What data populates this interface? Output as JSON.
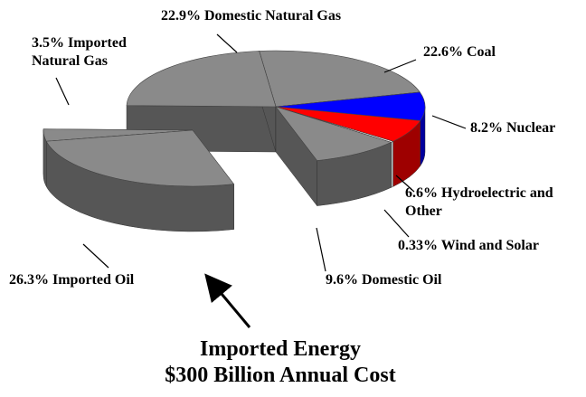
{
  "chart_data": {
    "type": "pie3d",
    "categories": [
      "Domestic Natural Gas",
      "Coal",
      "Nuclear",
      "Hydroelectric and Other",
      "Wind and Solar",
      "Domestic Oil",
      "Imported Oil",
      "Imported Natural Gas"
    ],
    "values": [
      22.9,
      22.6,
      8.2,
      6.6,
      0.33,
      9.6,
      26.3,
      3.5
    ],
    "value_labels": [
      "22.9%",
      "22.6%",
      "8.2%",
      "6.6%",
      "0.33%",
      "9.6%",
      "26.3%",
      "3.5%"
    ],
    "colors": [
      "#8a8a8a",
      "#8a8a8a",
      "#0000ff",
      "#ff0000",
      "#ffffff",
      "#8a8a8a",
      "#8a8a8a",
      "#8a8a8a"
    ],
    "exploded": [
      6,
      7
    ],
    "annotation": [
      "Imported Energy",
      "$300 Billion Annual Cost"
    ]
  }
}
